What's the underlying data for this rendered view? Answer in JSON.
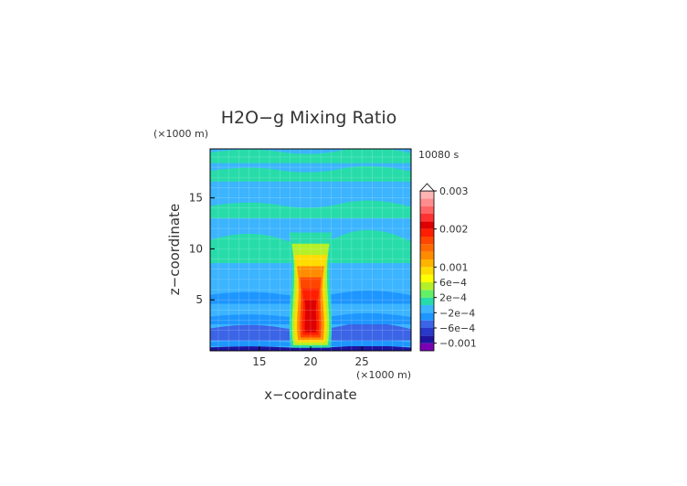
{
  "chart_data": {
    "type": "heatmap",
    "title": "H2O−g Mixing Ratio",
    "time_label": "10080 s",
    "xlabel": "x−coordinate",
    "ylabel": "z−coordinate",
    "x_unit": "(×1000 m)",
    "y_unit": "(×1000 m)",
    "xlim": [
      10.2,
      29.8
    ],
    "ylim": [
      0,
      19.8
    ],
    "x_ticks": [
      15,
      20,
      25
    ],
    "y_ticks": [
      5,
      10,
      15
    ],
    "colorbar": {
      "labels": [
        "0.003",
        "0.002",
        "0.001",
        "6e−4",
        "2e−4",
        "−2e−4",
        "−6e−4",
        "−0.001"
      ],
      "label_values": [
        0.003,
        0.002,
        0.001,
        0.0006,
        0.0002,
        -0.0002,
        -0.0006,
        -0.001
      ],
      "levels": [
        -0.0012,
        -0.001,
        -0.0008,
        -0.0006,
        -0.0004,
        -0.0002,
        0.0,
        0.0002,
        0.0004,
        0.0006,
        0.0008,
        0.001,
        0.0012,
        0.0014,
        0.0016,
        0.0018,
        0.002,
        0.0022,
        0.0024,
        0.0026,
        0.0028,
        0.003
      ],
      "colors": [
        "#7a00b4",
        "#1e14a0",
        "#2838c8",
        "#3c64e6",
        "#1e96ff",
        "#3cb4ff",
        "#28dcaa",
        "#64f064",
        "#b4f028",
        "#ffff00",
        "#ffdc00",
        "#ffb400",
        "#ff8c00",
        "#ff6a00",
        "#ff4600",
        "#ff1e00",
        "#dc0000",
        "#ff3232",
        "#ff6464",
        "#ff8c8c",
        "#ffb4b4"
      ],
      "overflow_color": "#ffffff"
    },
    "field": {
      "background_value": -0.0002,
      "bands": [
        {
          "z": [
            0.0,
            0.45
          ],
          "value": -0.001
        },
        {
          "z": [
            0.45,
            1.0
          ],
          "value": -0.0004
        },
        {
          "z": [
            1.0,
            2.6
          ],
          "value": -0.0006
        },
        {
          "z": [
            2.6,
            3.6
          ],
          "value": -0.0004
        },
        {
          "z": [
            4.6,
            5.8
          ],
          "value": -0.0004
        },
        {
          "z": [
            8.6,
            11.6
          ],
          "value": 0.0001
        },
        {
          "z": [
            13.0,
            14.6
          ],
          "value": 0.0001
        },
        {
          "z": [
            16.6,
            18.0
          ],
          "value": 0.0001
        },
        {
          "z": [
            18.4,
            19.8
          ],
          "value": 0.0001
        }
      ],
      "plume": {
        "x_center": 20.0,
        "z_range": [
          0.3,
          11.6
        ],
        "peak_value": 0.0021
      }
    }
  }
}
